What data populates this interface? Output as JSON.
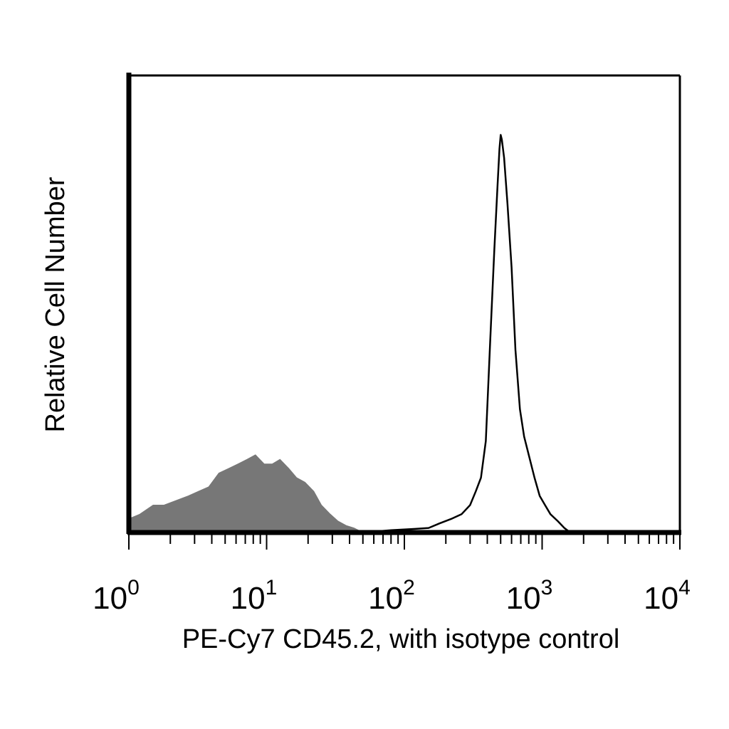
{
  "chart_data": {
    "type": "area",
    "title": "",
    "xlabel": "PE-Cy7 CD45.2, with isotype control",
    "ylabel": "Relative Cell Number",
    "x_scale": "log",
    "xlim": [
      1,
      10000
    ],
    "ylim": [
      0,
      100
    ],
    "x_ticks": [
      {
        "base": "10",
        "exp": "0",
        "value": 1
      },
      {
        "base": "10",
        "exp": "1",
        "value": 10
      },
      {
        "base": "10",
        "exp": "2",
        "value": 100
      },
      {
        "base": "10",
        "exp": "3",
        "value": 1000
      },
      {
        "base": "10",
        "exp": "4",
        "value": 10000
      }
    ],
    "grid": false,
    "legend": "none",
    "series": [
      {
        "style": "filled",
        "color": "#777777",
        "x": [
          1,
          1.2,
          1.5,
          1.8,
          2.2,
          2.7,
          3.2,
          3.8,
          4.5,
          5.3,
          6.2,
          7.2,
          8.3,
          9.6,
          11,
          12.5,
          14.5,
          16.5,
          19,
          22,
          25,
          29,
          33,
          38,
          43,
          50
        ],
        "y": [
          3,
          4,
          6,
          6,
          7,
          8,
          9,
          10,
          13,
          14,
          15,
          16,
          17,
          15,
          15,
          16,
          14,
          12,
          11,
          9,
          6,
          4,
          2.5,
          1.5,
          1,
          0
        ]
      },
      {
        "style": "outline",
        "color": "#000000",
        "x": [
          50,
          80,
          120,
          150,
          180,
          220,
          260,
          300,
          330,
          360,
          390,
          420,
          450,
          475,
          490,
          500,
          510,
          530,
          560,
          600,
          640,
          690,
          740,
          800,
          880,
          960,
          1050,
          1150,
          1300,
          1450,
          1600
        ],
        "y": [
          0,
          0.5,
          0.8,
          1,
          2,
          3,
          4,
          6,
          9,
          12,
          20,
          42,
          62,
          76,
          84,
          87,
          86,
          82,
          72,
          58,
          40,
          27,
          21,
          17,
          12,
          8,
          6,
          4,
          2.5,
          1,
          0
        ]
      }
    ]
  }
}
